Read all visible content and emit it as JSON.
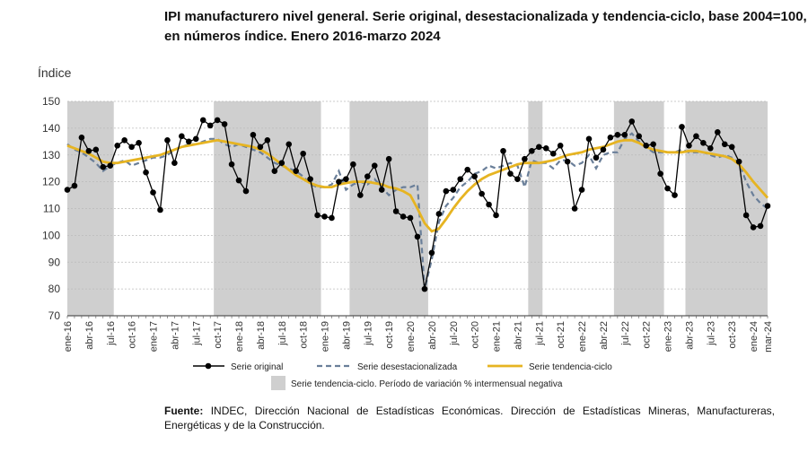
{
  "title_line1": "IPI manufacturero nivel general. Serie original, desestacionalizada y tendencia-ciclo, base 2004=100,",
  "title_line2": "en números índice. Enero 2016-marzo 2024",
  "source_label": "Fuente:",
  "source_text": "INDEC, Dirección Nacional de Estadísticas Económicas. Dirección de Estadísticas Mineras, Manufactureras, Energéticas y de la Construcción.",
  "colors": {
    "original": "#000000",
    "seasonal": "#6a7f99",
    "trend": "#e6b422",
    "shade": "#cfcfcf",
    "grid": "#bbbbbb"
  },
  "chart_data": {
    "type": "line",
    "title": "IPI manufacturero nivel general",
    "ylabel": "Índice",
    "ylim": [
      70,
      150
    ],
    "yticks": [
      70,
      80,
      90,
      100,
      110,
      120,
      130,
      140,
      150
    ],
    "grid": "horizontal",
    "legend_position": "bottom",
    "start": "2016-01",
    "n_months": 99,
    "x_tick_labels": [
      {
        "i": 0,
        "label": "ene-16"
      },
      {
        "i": 3,
        "label": "abr-16"
      },
      {
        "i": 6,
        "label": "jul-16"
      },
      {
        "i": 9,
        "label": "oct-16"
      },
      {
        "i": 12,
        "label": "ene-17"
      },
      {
        "i": 15,
        "label": "abr-17"
      },
      {
        "i": 18,
        "label": "jul-17"
      },
      {
        "i": 21,
        "label": "oct-17"
      },
      {
        "i": 24,
        "label": "ene-18"
      },
      {
        "i": 27,
        "label": "abr-18"
      },
      {
        "i": 30,
        "label": "jul-18"
      },
      {
        "i": 33,
        "label": "oct-18"
      },
      {
        "i": 36,
        "label": "ene-19"
      },
      {
        "i": 39,
        "label": "abr-19"
      },
      {
        "i": 42,
        "label": "jul-19"
      },
      {
        "i": 45,
        "label": "oct-19"
      },
      {
        "i": 48,
        "label": "ene-20"
      },
      {
        "i": 51,
        "label": "abr-20"
      },
      {
        "i": 54,
        "label": "jul-20"
      },
      {
        "i": 57,
        "label": "oct-20"
      },
      {
        "i": 60,
        "label": "ene-21"
      },
      {
        "i": 63,
        "label": "abr-21"
      },
      {
        "i": 66,
        "label": "jul-21"
      },
      {
        "i": 69,
        "label": "oct-21"
      },
      {
        "i": 72,
        "label": "ene-22"
      },
      {
        "i": 75,
        "label": "abr-22"
      },
      {
        "i": 78,
        "label": "jul-22"
      },
      {
        "i": 81,
        "label": "oct-22"
      },
      {
        "i": 84,
        "label": "ene-23"
      },
      {
        "i": 87,
        "label": "abr-23"
      },
      {
        "i": 90,
        "label": "jul-23"
      },
      {
        "i": 93,
        "label": "oct-23"
      },
      {
        "i": 96,
        "label": "ene-24"
      },
      {
        "i": 98,
        "label": "mar-24"
      }
    ],
    "shaded_periods": [
      {
        "start": 0,
        "end": 6.5
      },
      {
        "start": 20.5,
        "end": 35.5
      },
      {
        "start": 39.5,
        "end": 50.5
      },
      {
        "start": 64.5,
        "end": 66.5
      },
      {
        "start": 76.5,
        "end": 83.5
      },
      {
        "start": 86.5,
        "end": 98.5
      }
    ],
    "series": [
      {
        "name": "Serie original",
        "style": "line-markers",
        "values": [
          117,
          118.5,
          136.5,
          131.5,
          132,
          125.5,
          126,
          133.5,
          135.5,
          133,
          134.5,
          123.5,
          116,
          109.5,
          135.5,
          127,
          137,
          135,
          136,
          143,
          141,
          143,
          141.5,
          126.5,
          120.5,
          116.5,
          137.5,
          133,
          135.5,
          124,
          127,
          134,
          124,
          130.5,
          121,
          107.5,
          107,
          106.5,
          120,
          121,
          126.5,
          115,
          122,
          126,
          117,
          128.5,
          109,
          107,
          106.5,
          99.5,
          80,
          93.5,
          108,
          116.5,
          117,
          121,
          124.5,
          122,
          115.5,
          111.5,
          107.5,
          131.5,
          123,
          121,
          128.5,
          131.5,
          133,
          132.5,
          130.5,
          133.5,
          127.5,
          110,
          117,
          136,
          129,
          132,
          136.5,
          137.5,
          137.5,
          142.5,
          137,
          133.5,
          134,
          123,
          117.5,
          115,
          140.5,
          133.5,
          137,
          134.5,
          132.5,
          138.5,
          134,
          133,
          127.5,
          107.5,
          103,
          103.5,
          111
        ]
      },
      {
        "name": "Serie desestacionalizada",
        "style": "dashed",
        "values": [
          134,
          132,
          131,
          129,
          127,
          124,
          126,
          127,
          128,
          126,
          127,
          128,
          129,
          129,
          130,
          132,
          133,
          134,
          134,
          135,
          136,
          136,
          134,
          133,
          134,
          133,
          132,
          131,
          129,
          127,
          126,
          125,
          124,
          122,
          119,
          118,
          118,
          119,
          124,
          117,
          119,
          120,
          119,
          121,
          118,
          115,
          117,
          118,
          118,
          119,
          80,
          91,
          105,
          111,
          114,
          118,
          120,
          123,
          124,
          126,
          125,
          126,
          127,
          126,
          118,
          128,
          127,
          127,
          125,
          128,
          128,
          126,
          127,
          130,
          125,
          130,
          131,
          131,
          136,
          138,
          135,
          133,
          131,
          131,
          131,
          131,
          132,
          131,
          131,
          131,
          130,
          129,
          130,
          129,
          127,
          120,
          115,
          112,
          110
        ]
      },
      {
        "name": "Serie tendencia-ciclo",
        "style": "line",
        "values": [
          133.5,
          132.5,
          131.5,
          130.5,
          129,
          127.5,
          127,
          127,
          127.5,
          128,
          128.5,
          129,
          129.5,
          130,
          131,
          132,
          133,
          133.5,
          134,
          134.5,
          135,
          135.5,
          135,
          134.5,
          134,
          133.5,
          133,
          132,
          130.5,
          128.5,
          126.5,
          124.5,
          122.5,
          121,
          119.5,
          118.5,
          118,
          118,
          119,
          119.5,
          120,
          120,
          120,
          119.5,
          119,
          118,
          117.5,
          116.5,
          115,
          110,
          104.5,
          101.5,
          102.5,
          106,
          110,
          113.5,
          116.5,
          119,
          121,
          122.5,
          123.5,
          124.5,
          125.5,
          126.5,
          127,
          127,
          127,
          127.5,
          128,
          129,
          130,
          130.5,
          131,
          132,
          132.5,
          133,
          134,
          135,
          135.5,
          135.5,
          134.5,
          133,
          132,
          131.5,
          131,
          131,
          131,
          131.5,
          131.5,
          131,
          130.5,
          130,
          129.5,
          128.5,
          126.5,
          123.5,
          120,
          117,
          114
        ]
      }
    ],
    "legend": [
      {
        "label": "Serie original",
        "style": "line-markers"
      },
      {
        "label": "Serie desestacionalizada",
        "style": "dashed"
      },
      {
        "label": "Serie tendencia-ciclo",
        "style": "line"
      },
      {
        "label": "Serie tendencia-ciclo. Período de variación % intermensual negativa",
        "style": "shade"
      }
    ]
  }
}
